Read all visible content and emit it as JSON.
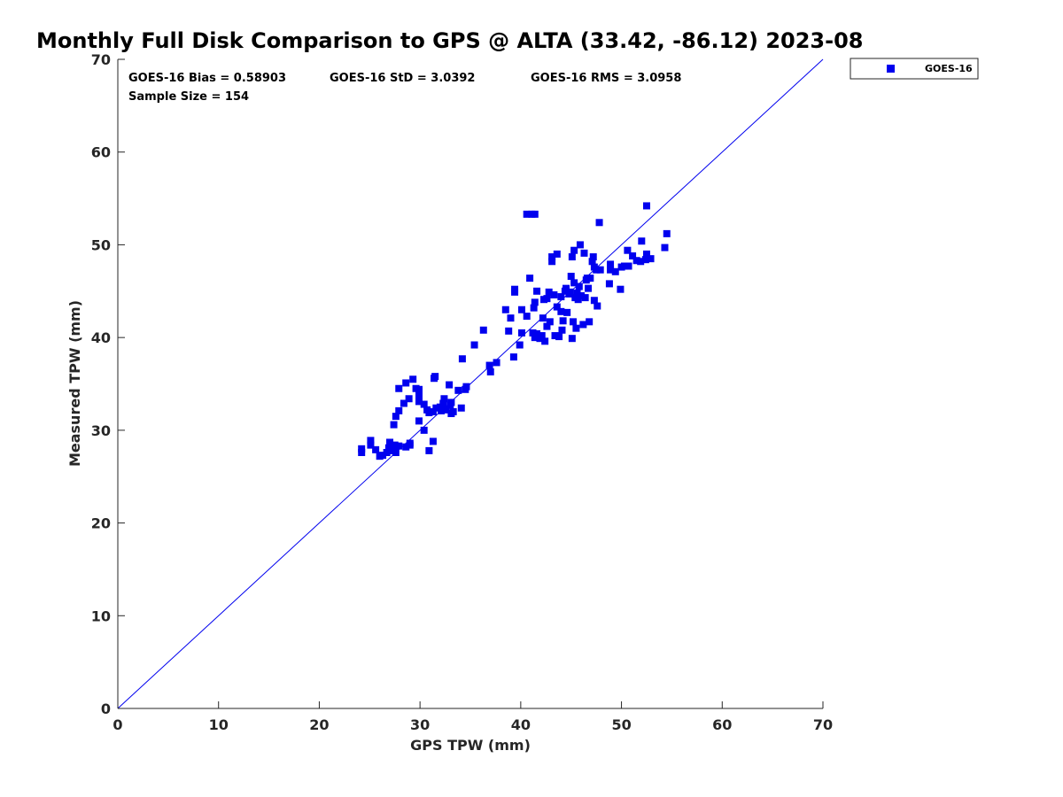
{
  "chart_data": {
    "type": "scatter",
    "title": "Monthly Full Disk Comparison to GPS @ ALTA (33.42, -86.12) 2023-08",
    "xlabel": "GPS TPW (mm)",
    "ylabel": "Measured TPW (mm)",
    "xlim": [
      0,
      70
    ],
    "ylim": [
      0,
      70
    ],
    "xticks": [
      0,
      10,
      20,
      30,
      40,
      50,
      60,
      70
    ],
    "yticks": [
      0,
      10,
      20,
      30,
      40,
      50,
      60,
      70
    ],
    "grid": false,
    "legend_position": "outside-top-right",
    "colors": {
      "series": "#0000ee",
      "reference_line": "#0000ee",
      "axis": "#262626"
    },
    "stats": [
      "GOES-16 Bias = 0.58903",
      "GOES-16 StD = 3.0392",
      "GOES-16 RMS = 3.0958",
      "Sample Size = 154"
    ],
    "reference_line": {
      "x": [
        0,
        70
      ],
      "y": [
        0,
        70
      ]
    },
    "series": [
      {
        "name": "GOES-16",
        "marker": "square",
        "points": [
          [
            24.2,
            27.6
          ],
          [
            24.2,
            28.0
          ],
          [
            25.1,
            28.4
          ],
          [
            25.1,
            28.9
          ],
          [
            25.6,
            27.9
          ],
          [
            26.0,
            27.2
          ],
          [
            26.3,
            27.3
          ],
          [
            26.7,
            27.6
          ],
          [
            26.9,
            28.1
          ],
          [
            27.0,
            28.7
          ],
          [
            27.2,
            28.2
          ],
          [
            27.3,
            27.8
          ],
          [
            27.5,
            28.4
          ],
          [
            27.6,
            27.6
          ],
          [
            27.9,
            28.3
          ],
          [
            27.4,
            30.6
          ],
          [
            27.6,
            31.5
          ],
          [
            27.9,
            32.1
          ],
          [
            27.9,
            34.5
          ],
          [
            28.4,
            32.9
          ],
          [
            28.6,
            35.1
          ],
          [
            28.6,
            28.2
          ],
          [
            28.9,
            33.4
          ],
          [
            29.0,
            28.6
          ],
          [
            29.0,
            28.4
          ],
          [
            29.3,
            35.5
          ],
          [
            29.6,
            34.5
          ],
          [
            29.9,
            33.7
          ],
          [
            29.9,
            34.4
          ],
          [
            29.9,
            33.1
          ],
          [
            29.9,
            31.0
          ],
          [
            30.4,
            32.8
          ],
          [
            30.4,
            30.0
          ],
          [
            30.7,
            32.2
          ],
          [
            30.9,
            31.9
          ],
          [
            30.9,
            27.8
          ],
          [
            31.3,
            32.0
          ],
          [
            31.3,
            28.8
          ],
          [
            31.4,
            35.6
          ],
          [
            31.5,
            35.8
          ],
          [
            31.6,
            32.4
          ],
          [
            32.0,
            32.5
          ],
          [
            32.1,
            32.1
          ],
          [
            32.3,
            32.9
          ],
          [
            32.4,
            33.4
          ],
          [
            32.6,
            32.2
          ],
          [
            32.9,
            34.9
          ],
          [
            33.0,
            32.7
          ],
          [
            33.1,
            33.0
          ],
          [
            33.1,
            31.8
          ],
          [
            33.3,
            32.0
          ],
          [
            33.8,
            34.3
          ],
          [
            34.1,
            32.4
          ],
          [
            34.2,
            37.7
          ],
          [
            34.5,
            34.4
          ],
          [
            34.6,
            34.7
          ],
          [
            35.4,
            39.2
          ],
          [
            36.3,
            40.8
          ],
          [
            36.9,
            37.0
          ],
          [
            37.0,
            36.3
          ],
          [
            37.6,
            37.3
          ],
          [
            38.5,
            43.0
          ],
          [
            38.8,
            40.7
          ],
          [
            39.0,
            42.1
          ],
          [
            39.3,
            37.9
          ],
          [
            39.4,
            44.9
          ],
          [
            39.4,
            45.2
          ],
          [
            39.9,
            39.2
          ],
          [
            40.1,
            40.5
          ],
          [
            40.1,
            43.0
          ],
          [
            40.6,
            42.3
          ],
          [
            40.6,
            53.3
          ],
          [
            40.9,
            46.4
          ],
          [
            41.1,
            53.3
          ],
          [
            41.4,
            53.3
          ],
          [
            41.2,
            40.5
          ],
          [
            41.3,
            43.2
          ],
          [
            41.4,
            43.8
          ],
          [
            41.4,
            40.0
          ],
          [
            41.6,
            45.0
          ],
          [
            41.6,
            40.4
          ],
          [
            41.9,
            39.9
          ],
          [
            42.1,
            40.2
          ],
          [
            42.2,
            42.1
          ],
          [
            42.3,
            44.1
          ],
          [
            42.4,
            39.6
          ],
          [
            42.6,
            41.2
          ],
          [
            42.6,
            44.2
          ],
          [
            42.8,
            44.9
          ],
          [
            42.9,
            41.7
          ],
          [
            43.1,
            48.2
          ],
          [
            43.1,
            48.7
          ],
          [
            43.3,
            44.6
          ],
          [
            43.4,
            40.2
          ],
          [
            43.6,
            43.3
          ],
          [
            43.6,
            49.0
          ],
          [
            43.8,
            40.1
          ],
          [
            44.0,
            42.8
          ],
          [
            44.0,
            44.4
          ],
          [
            44.1,
            40.8
          ],
          [
            44.2,
            41.8
          ],
          [
            44.4,
            45.0
          ],
          [
            44.5,
            45.3
          ],
          [
            44.6,
            42.7
          ],
          [
            44.8,
            44.7
          ],
          [
            44.9,
            44.9
          ],
          [
            45.0,
            46.6
          ],
          [
            45.1,
            39.9
          ],
          [
            45.1,
            48.7
          ],
          [
            45.2,
            41.7
          ],
          [
            45.3,
            49.4
          ],
          [
            45.3,
            45.9
          ],
          [
            45.4,
            44.3
          ],
          [
            45.5,
            41.0
          ],
          [
            45.6,
            44.8
          ],
          [
            45.7,
            44.1
          ],
          [
            45.8,
            45.5
          ],
          [
            45.9,
            50.0
          ],
          [
            46.0,
            44.5
          ],
          [
            46.2,
            41.4
          ],
          [
            46.3,
            49.1
          ],
          [
            46.4,
            44.3
          ],
          [
            46.5,
            46.2
          ],
          [
            46.6,
            46.4
          ],
          [
            46.7,
            45.3
          ],
          [
            46.8,
            41.7
          ],
          [
            46.9,
            46.4
          ],
          [
            47.1,
            48.2
          ],
          [
            47.2,
            48.7
          ],
          [
            47.3,
            44.0
          ],
          [
            47.3,
            47.6
          ],
          [
            47.5,
            47.3
          ],
          [
            47.6,
            43.4
          ],
          [
            47.8,
            52.4
          ],
          [
            47.9,
            47.3
          ],
          [
            48.8,
            45.8
          ],
          [
            48.9,
            47.3
          ],
          [
            48.9,
            47.9
          ],
          [
            49.4,
            47.1
          ],
          [
            49.9,
            45.2
          ],
          [
            50.0,
            47.6
          ],
          [
            50.3,
            47.7
          ],
          [
            50.6,
            49.4
          ],
          [
            50.7,
            47.7
          ],
          [
            51.1,
            48.8
          ],
          [
            51.5,
            48.3
          ],
          [
            51.9,
            48.2
          ],
          [
            52.0,
            50.4
          ],
          [
            52.4,
            48.4
          ],
          [
            52.5,
            54.2
          ],
          [
            52.5,
            49.0
          ],
          [
            52.9,
            48.5
          ],
          [
            54.3,
            49.7
          ],
          [
            54.5,
            51.2
          ]
        ]
      }
    ]
  }
}
